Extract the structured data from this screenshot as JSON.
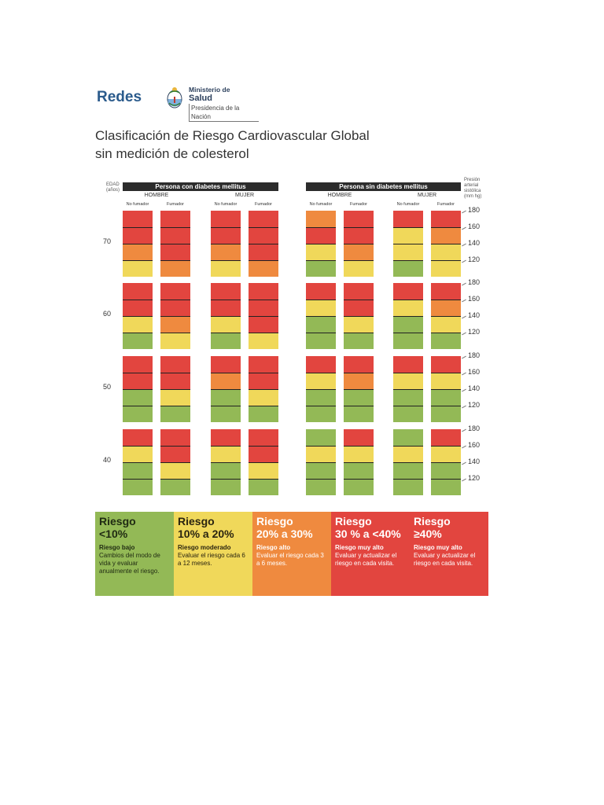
{
  "brand": "Redes",
  "ministry": {
    "line1": "Ministerio de",
    "line2": "Salud",
    "line3": "Presidencia de la Nación"
  },
  "title": {
    "line1": "Clasificación de Riesgo Cardiovascular Global",
    "line2": "sin medición de colesterol"
  },
  "age_axis_label": {
    "line1": "EDAD",
    "line2": "(años)"
  },
  "bp_axis_label": {
    "line1": "Presión",
    "line2": "arterial",
    "line3": "sistólica",
    "line4": "(mm hg)"
  },
  "groups": [
    {
      "title": "Persona con diabetes mellitus",
      "sexes": [
        {
          "name": "HOMBRE",
          "cols": [
            "No fumador",
            "Fumador"
          ]
        },
        {
          "name": "MUJER",
          "cols": [
            "No fumador",
            "Fumador"
          ]
        }
      ]
    },
    {
      "title": "Persona sin diabetes mellitus",
      "sexes": [
        {
          "name": "HOMBRE",
          "cols": [
            "No fumador",
            "Fumador"
          ]
        },
        {
          "name": "MUJER",
          "cols": [
            "No fumador",
            "Fumador"
          ]
        }
      ]
    }
  ],
  "ages": [
    "70",
    "60",
    "50",
    "40"
  ],
  "bp_levels": [
    "180",
    "160",
    "140",
    "120"
  ],
  "colors": {
    "green": "#93b956",
    "yellow": "#f0d85a",
    "orange": "#ef8a3f",
    "red": "#e2453f",
    "redd": "#e34443"
  },
  "risk_grid": [
    [
      [
        "r",
        "r",
        "o",
        "y"
      ],
      [
        "r",
        "r",
        "r",
        "o"
      ],
      [
        "r",
        "r",
        "o",
        "y"
      ],
      [
        "r",
        "r",
        "r",
        "o"
      ],
      [
        "o",
        "r",
        "y",
        "g"
      ],
      [
        "r",
        "r",
        "o",
        "y"
      ],
      [
        "r",
        "y",
        "y",
        "g"
      ],
      [
        "r",
        "o",
        "y",
        "y"
      ]
    ],
    [
      [
        "r",
        "r",
        "y",
        "g"
      ],
      [
        "r",
        "r",
        "o",
        "y"
      ],
      [
        "r",
        "r",
        "y",
        "g"
      ],
      [
        "r",
        "r",
        "r",
        "y"
      ],
      [
        "r",
        "y",
        "g",
        "g"
      ],
      [
        "r",
        "r",
        "y",
        "g"
      ],
      [
        "r",
        "y",
        "g",
        "g"
      ],
      [
        "r",
        "o",
        "y",
        "g"
      ]
    ],
    [
      [
        "r",
        "r",
        "g",
        "g"
      ],
      [
        "r",
        "r",
        "y",
        "g"
      ],
      [
        "r",
        "o",
        "g",
        "g"
      ],
      [
        "r",
        "r",
        "y",
        "g"
      ],
      [
        "r",
        "y",
        "g",
        "g"
      ],
      [
        "r",
        "o",
        "g",
        "g"
      ],
      [
        "r",
        "y",
        "g",
        "g"
      ],
      [
        "r",
        "y",
        "g",
        "g"
      ]
    ],
    [
      [
        "r",
        "y",
        "g",
        "g"
      ],
      [
        "r",
        "r",
        "y",
        "g"
      ],
      [
        "r",
        "y",
        "g",
        "g"
      ],
      [
        "r",
        "r",
        "y",
        "g"
      ],
      [
        "g",
        "y",
        "g",
        "g"
      ],
      [
        "r",
        "y",
        "g",
        "g"
      ],
      [
        "g",
        "y",
        "g",
        "g"
      ],
      [
        "r",
        "y",
        "g",
        "g"
      ]
    ]
  ],
  "legend": [
    {
      "h1": "Riesgo",
      "h2": "<10%",
      "t": "Riesgo bajo",
      "d": "Cambios del modo de vida y evaluar anualmente el riesgo.",
      "bg": "#93b956",
      "fg": "#1f2a12"
    },
    {
      "h1": "Riesgo",
      "h2": "10% a 20%",
      "t": "Riesgo moderado",
      "d": "Evaluar el riesgo cada 6 a 12 meses.",
      "bg": "#f0d85a",
      "fg": "#2a2410"
    },
    {
      "h1": "Riesgo",
      "h2": "20% a 30%",
      "t": "Riesgo alto",
      "d": "Evaluar el riesgo cada 3 a 6 meses.",
      "bg": "#ef8a3f",
      "fg": "#ffffff"
    },
    {
      "h1": "Riesgo",
      "h2": "30 % a <40%",
      "t": "Riesgo muy alto",
      "d": "Evaluar y actualizar el riesgo en cada visita.",
      "bg": "#e2453f",
      "fg": "#ffffff"
    },
    {
      "h1": "Riesgo",
      "h2": "≥40%",
      "t": "Riesgo muy alto",
      "d": "Evaluar y actualizar el riesgo en cada visita.",
      "bg": "#e2453f",
      "fg": "#ffffff"
    }
  ]
}
